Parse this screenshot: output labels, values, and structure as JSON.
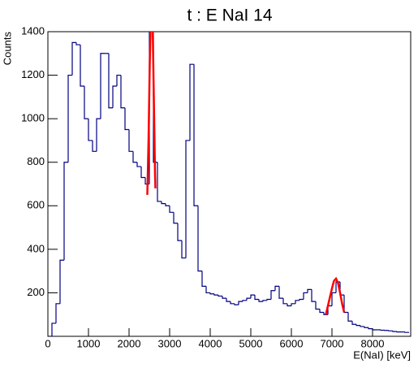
{
  "chart_data": {
    "type": "histogram",
    "title": "t : E NaI 14",
    "xlabel": "E(NaI) [keV]",
    "ylabel": "Counts",
    "bins": [
      0,
      100,
      200,
      300,
      400,
      500,
      600,
      700,
      800,
      900,
      1000,
      1100,
      1200,
      1300,
      1400,
      1500,
      1600,
      1700,
      1800,
      1900,
      2000,
      2100,
      2200,
      2300,
      2400,
      2500,
      2600,
      2700,
      2800,
      2900,
      3000,
      3100,
      3200,
      3300,
      3400,
      3500,
      3600,
      3700,
      3800,
      3900,
      4000,
      4100,
      4200,
      4300,
      4400,
      4500,
      4600,
      4700,
      4800,
      4900,
      5000,
      5100,
      5200,
      5300,
      5400,
      5500,
      5600,
      5700,
      5800,
      5900,
      6000,
      6100,
      6200,
      6300,
      6400,
      6500,
      6600,
      6700,
      6800,
      6900,
      7000,
      7100,
      7200,
      7300,
      7400,
      7500,
      7600,
      7700,
      7800,
      7900,
      8000,
      8100,
      8200,
      8300,
      8400,
      8500,
      8600,
      8700,
      8800,
      8900
    ],
    "values": [
      0,
      60,
      150,
      350,
      800,
      1200,
      1350,
      1340,
      1150,
      1000,
      900,
      850,
      1000,
      1300,
      1300,
      1050,
      1150,
      1200,
      1050,
      950,
      850,
      800,
      780,
      730,
      700,
      1500,
      800,
      620,
      610,
      600,
      570,
      520,
      440,
      360,
      900,
      1250,
      600,
      300,
      230,
      200,
      195,
      190,
      185,
      175,
      160,
      150,
      145,
      160,
      165,
      175,
      190,
      170,
      160,
      165,
      170,
      210,
      230,
      175,
      150,
      140,
      150,
      165,
      170,
      200,
      215,
      160,
      125,
      110,
      100,
      140,
      200,
      250,
      190,
      110,
      70,
      55,
      50,
      45,
      40,
      35,
      30,
      30,
      28,
      27,
      25,
      22,
      20,
      20,
      18
    ],
    "color": "#000080",
    "fits": [
      {
        "color": "#ff0000",
        "x": [
          2450,
          2480,
          2510,
          2540,
          2560,
          2580,
          2610,
          2640,
          2650
        ],
        "values": [
          650,
          900,
          1250,
          1500,
          1550,
          1450,
          1100,
          750,
          680
        ]
      },
      {
        "color": "#ff0000",
        "x": [
          6850,
          6900,
          6950,
          7000,
          7050,
          7100,
          7150,
          7200,
          7250,
          7300
        ],
        "values": [
          100,
          140,
          180,
          220,
          255,
          265,
          245,
          200,
          150,
          110
        ]
      }
    ],
    "xlim": [
      0,
      8940
    ],
    "ylim": [
      0,
      1400
    ],
    "xticks": [
      0,
      1000,
      2000,
      3000,
      4000,
      5000,
      6000,
      7000,
      8000
    ],
    "yticks": [
      200,
      400,
      600,
      800,
      1000,
      1200,
      1400
    ]
  }
}
